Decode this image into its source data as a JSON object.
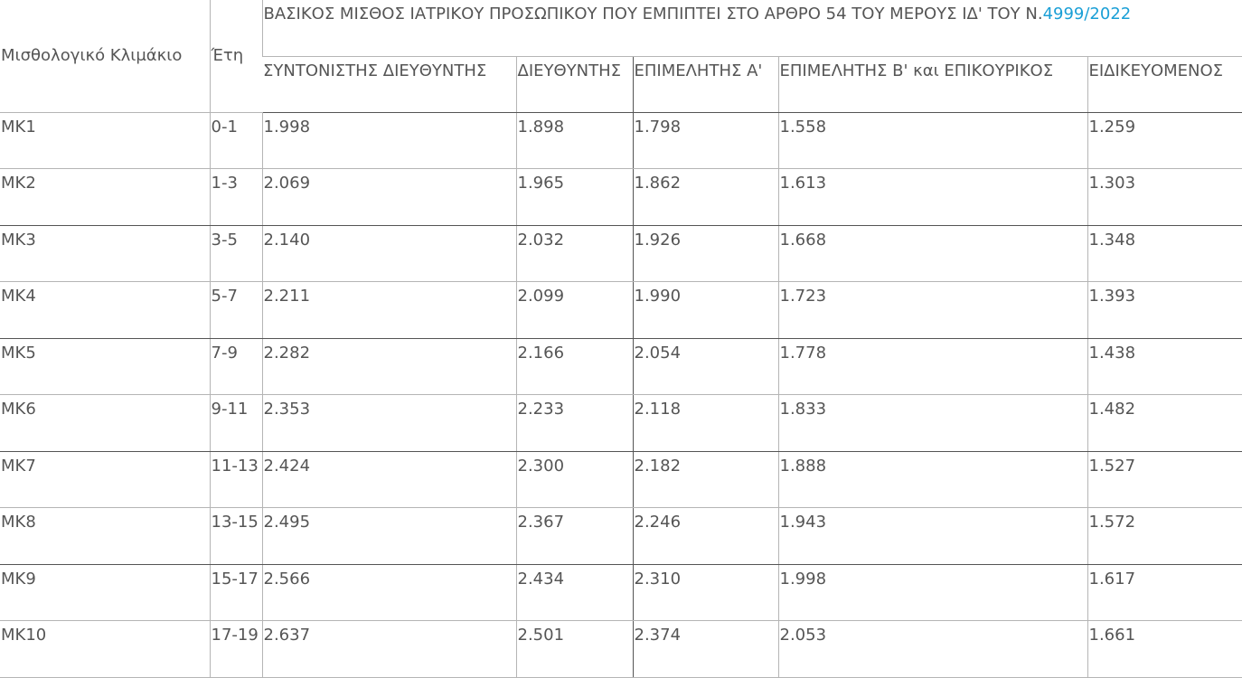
{
  "table": {
    "header": {
      "scale_label": "Μισθολογικό Κλιμάκιο",
      "years_label": "Έτη",
      "title_text": "ΒΑΣΙΚΟΣ ΜΙΣΘΟΣ ΙΑΤΡΙΚΟΥ ΠΡΟΣΩΠΙΚΟΥ ΠΟΥ ΕΜΠΙΠΤΕΙ ΣΤΟ ΑΡΘΡΟ 54 ΤΟΥ ΜΕΡΟΥΣ ΙΔ' ΤΟΥ Ν.",
      "title_link": "4999/2022",
      "columns": [
        "ΣΥΝΤΟΝΙΣΤΗΣ ΔΙΕΥΘΥΝΤΗΣ",
        "ΔΙΕΥΘΥΝΤΗΣ",
        "ΕΠΙΜΕΛΗΤΗΣ Α'",
        "ΕΠΙΜΕΛΗΤΗΣ Β' και ΕΠΙΚΟΥΡΙΚΟΣ",
        "ΕΙΔΙΚΕΥΟΜΕΝΟΣ"
      ]
    },
    "rows": [
      {
        "mk": "ΜΚ1",
        "years": "0-1",
        "values": [
          "1.998",
          "1.898",
          "1.798",
          "1.558",
          "1.259"
        ]
      },
      {
        "mk": "ΜΚ2",
        "years": "1-3",
        "values": [
          "2.069",
          "1.965",
          "1.862",
          "1.613",
          "1.303"
        ]
      },
      {
        "mk": "ΜΚ3",
        "years": "3-5",
        "values": [
          "2.140",
          "2.032",
          "1.926",
          "1.668",
          "1.348"
        ]
      },
      {
        "mk": "ΜΚ4",
        "years": "5-7",
        "values": [
          "2.211",
          "2.099",
          "1.990",
          "1.723",
          "1.393"
        ]
      },
      {
        "mk": "ΜΚ5",
        "years": "7-9",
        "values": [
          "2.282",
          "2.166",
          "2.054",
          "1.778",
          "1.438"
        ]
      },
      {
        "mk": "ΜΚ6",
        "years": "9-11",
        "values": [
          "2.353",
          "2.233",
          "2.118",
          "1.833",
          "1.482"
        ]
      },
      {
        "mk": "ΜΚ7",
        "years": "11-13",
        "values": [
          "2.424",
          "2.300",
          "2.182",
          "1.888",
          "1.527"
        ]
      },
      {
        "mk": "ΜΚ8",
        "years": "13-15",
        "values": [
          "2.495",
          "2.367",
          "2.246",
          "1.943",
          "1.572"
        ]
      },
      {
        "mk": "ΜΚ9",
        "years": "15-17",
        "values": [
          "2.566",
          "2.434",
          "2.310",
          "1.998",
          "1.617"
        ]
      },
      {
        "mk": "ΜΚ10",
        "years": "17-19",
        "values": [
          "2.637",
          "2.501",
          "2.374",
          "2.053",
          "1.661"
        ]
      }
    ],
    "colors": {
      "text": "#555555",
      "link": "#1a9fd6",
      "grid": "#b5b5b5",
      "strong_rule": "#555555"
    }
  }
}
